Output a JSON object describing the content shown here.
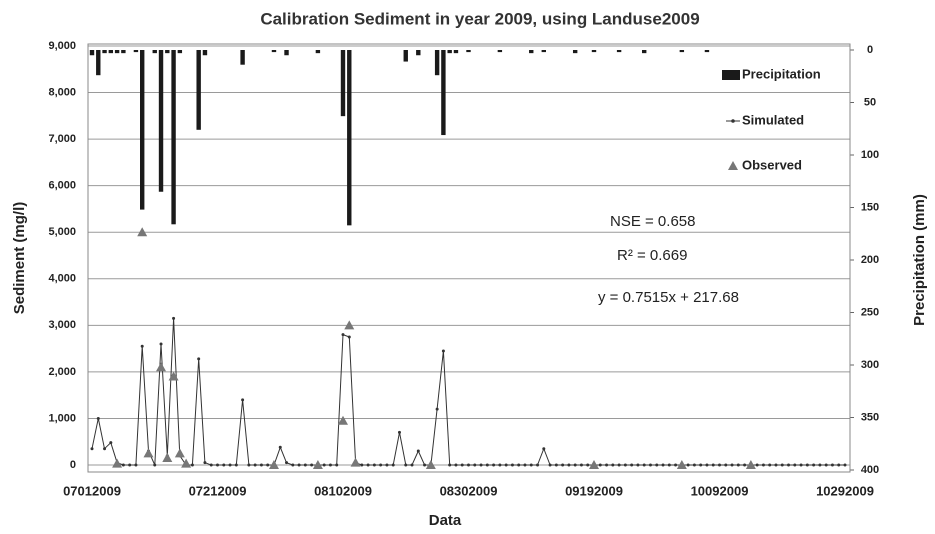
{
  "chart_data": {
    "type": "combo",
    "title": "Calibration Sediment in year 2009, using Landuse2009",
    "x_label": "Data",
    "y_label": "Sediment (mg/l)",
    "y2_label": "Precipitation (mm)",
    "annotations": [
      "NSE = 0.658",
      "R² = 0.669",
      "y = 0.7515x + 217.68"
    ],
    "categories": [
      "07012009",
      null,
      null,
      null,
      null,
      null,
      null,
      null,
      null,
      null,
      null,
      null,
      null,
      null,
      null,
      null,
      null,
      null,
      null,
      null,
      "07212009",
      null,
      null,
      null,
      null,
      null,
      null,
      null,
      null,
      null,
      null,
      null,
      null,
      null,
      null,
      null,
      null,
      null,
      null,
      null,
      "08102009",
      null,
      null,
      null,
      null,
      null,
      null,
      null,
      null,
      null,
      null,
      null,
      null,
      null,
      null,
      null,
      null,
      null,
      null,
      null,
      "08302009",
      null,
      null,
      null,
      null,
      null,
      null,
      null,
      null,
      null,
      null,
      null,
      null,
      null,
      null,
      null,
      null,
      null,
      null,
      null,
      "09192009",
      null,
      null,
      null,
      null,
      null,
      null,
      null,
      null,
      null,
      null,
      null,
      null,
      null,
      null,
      null,
      null,
      null,
      null,
      null,
      "10092009",
      null,
      null,
      null,
      null,
      null,
      null,
      null,
      null,
      null,
      null,
      null,
      null,
      null,
      null,
      null,
      null,
      null,
      null,
      null,
      "10292009"
    ],
    "series": [
      {
        "name": "Precipitation",
        "type": "bar",
        "axis": "y2",
        "color": "#1a1a1a",
        "values": [
          5,
          24,
          3,
          3,
          3,
          3,
          0,
          2,
          152,
          0,
          3,
          135,
          3,
          166,
          3,
          0,
          0,
          76,
          5,
          0,
          0,
          0,
          0,
          0,
          14,
          0,
          0,
          0,
          0,
          2,
          0,
          5,
          0,
          0,
          0,
          0,
          3,
          0,
          0,
          0,
          63,
          167,
          0,
          0,
          0,
          0,
          0,
          0,
          0,
          0,
          11,
          0,
          5,
          0,
          0,
          24,
          81,
          3,
          3,
          0,
          2,
          0,
          0,
          0,
          0,
          2,
          0,
          0,
          0,
          0,
          3,
          0,
          2,
          0,
          0,
          0,
          0,
          3,
          0,
          0,
          2,
          0,
          0,
          0,
          2,
          0,
          0,
          0,
          3,
          0,
          0,
          0,
          0,
          0,
          2,
          0,
          0,
          0,
          2,
          0,
          0,
          0,
          0,
          0,
          0,
          0,
          0,
          0,
          0,
          0,
          0,
          0,
          0,
          0,
          0,
          0,
          0,
          0,
          0,
          0,
          0
        ]
      },
      {
        "name": "Simulated",
        "type": "line",
        "color": "#333333",
        "values": [
          350,
          1000,
          350,
          480,
          50,
          0,
          0,
          0,
          2550,
          300,
          0,
          2600,
          200,
          3150,
          200,
          0,
          0,
          2280,
          50,
          0,
          0,
          0,
          0,
          0,
          1400,
          0,
          0,
          0,
          0,
          0,
          380,
          50,
          0,
          0,
          0,
          0,
          0,
          0,
          0,
          0,
          2800,
          2750,
          50,
          0,
          0,
          0,
          0,
          0,
          0,
          700,
          0,
          0,
          300,
          0,
          0,
          1200,
          2450,
          0,
          0,
          0,
          0,
          0,
          0,
          0,
          0,
          0,
          0,
          0,
          0,
          0,
          0,
          0,
          350,
          0,
          0,
          0,
          0,
          0,
          0,
          0,
          0,
          0,
          0,
          0,
          0,
          0,
          0,
          0,
          0,
          0,
          0,
          0,
          0,
          0,
          0,
          0,
          0,
          0,
          0,
          0,
          0,
          0,
          0,
          0,
          0,
          0,
          0,
          0,
          0,
          0,
          0,
          0,
          0,
          0,
          0,
          0,
          0,
          0,
          0,
          0,
          0
        ]
      },
      {
        "name": "Observed",
        "type": "scatter",
        "color": "#777777",
        "values": [
          null,
          null,
          null,
          null,
          30,
          null,
          null,
          null,
          5000,
          250,
          null,
          2100,
          150,
          1900,
          250,
          30,
          null,
          null,
          null,
          null,
          null,
          null,
          null,
          null,
          null,
          null,
          null,
          null,
          null,
          0,
          null,
          null,
          null,
          null,
          null,
          null,
          0,
          null,
          null,
          null,
          950,
          3000,
          50,
          null,
          null,
          null,
          null,
          null,
          null,
          null,
          null,
          null,
          null,
          null,
          0,
          null,
          null,
          null,
          null,
          null,
          null,
          null,
          null,
          null,
          null,
          null,
          null,
          null,
          null,
          null,
          null,
          null,
          null,
          null,
          null,
          null,
          null,
          null,
          null,
          null,
          0,
          null,
          null,
          null,
          null,
          null,
          null,
          null,
          null,
          null,
          null,
          null,
          null,
          null,
          0,
          null,
          null,
          null,
          null,
          null,
          null,
          null,
          null,
          null,
          null,
          0,
          null,
          null,
          null,
          null,
          null,
          null,
          null,
          null,
          null,
          null,
          null,
          null,
          null,
          null,
          null
        ]
      }
    ],
    "ylim": [
      0,
      9000
    ],
    "yticks": [
      0,
      {
        "value": 1000,
        "label": "1,000"
      },
      {
        "value": 2000,
        "label": "2,000"
      },
      {
        "value": 3000,
        "label": "3,000"
      },
      {
        "value": 4000,
        "label": "4,000"
      },
      {
        "value": 5000,
        "label": "5,000"
      },
      {
        "value": 6000,
        "label": "6,000"
      },
      {
        "value": 7000,
        "label": "7,000"
      },
      {
        "value": 8000,
        "label": "8,000"
      },
      {
        "value": 9000,
        "label": "9,000"
      }
    ],
    "y2lim": [
      0,
      400
    ],
    "y2ticks": [
      0,
      50,
      100,
      150,
      200,
      250,
      300,
      350,
      400
    ],
    "y2_inverted": true,
    "grid": true,
    "legend": "upper right"
  }
}
